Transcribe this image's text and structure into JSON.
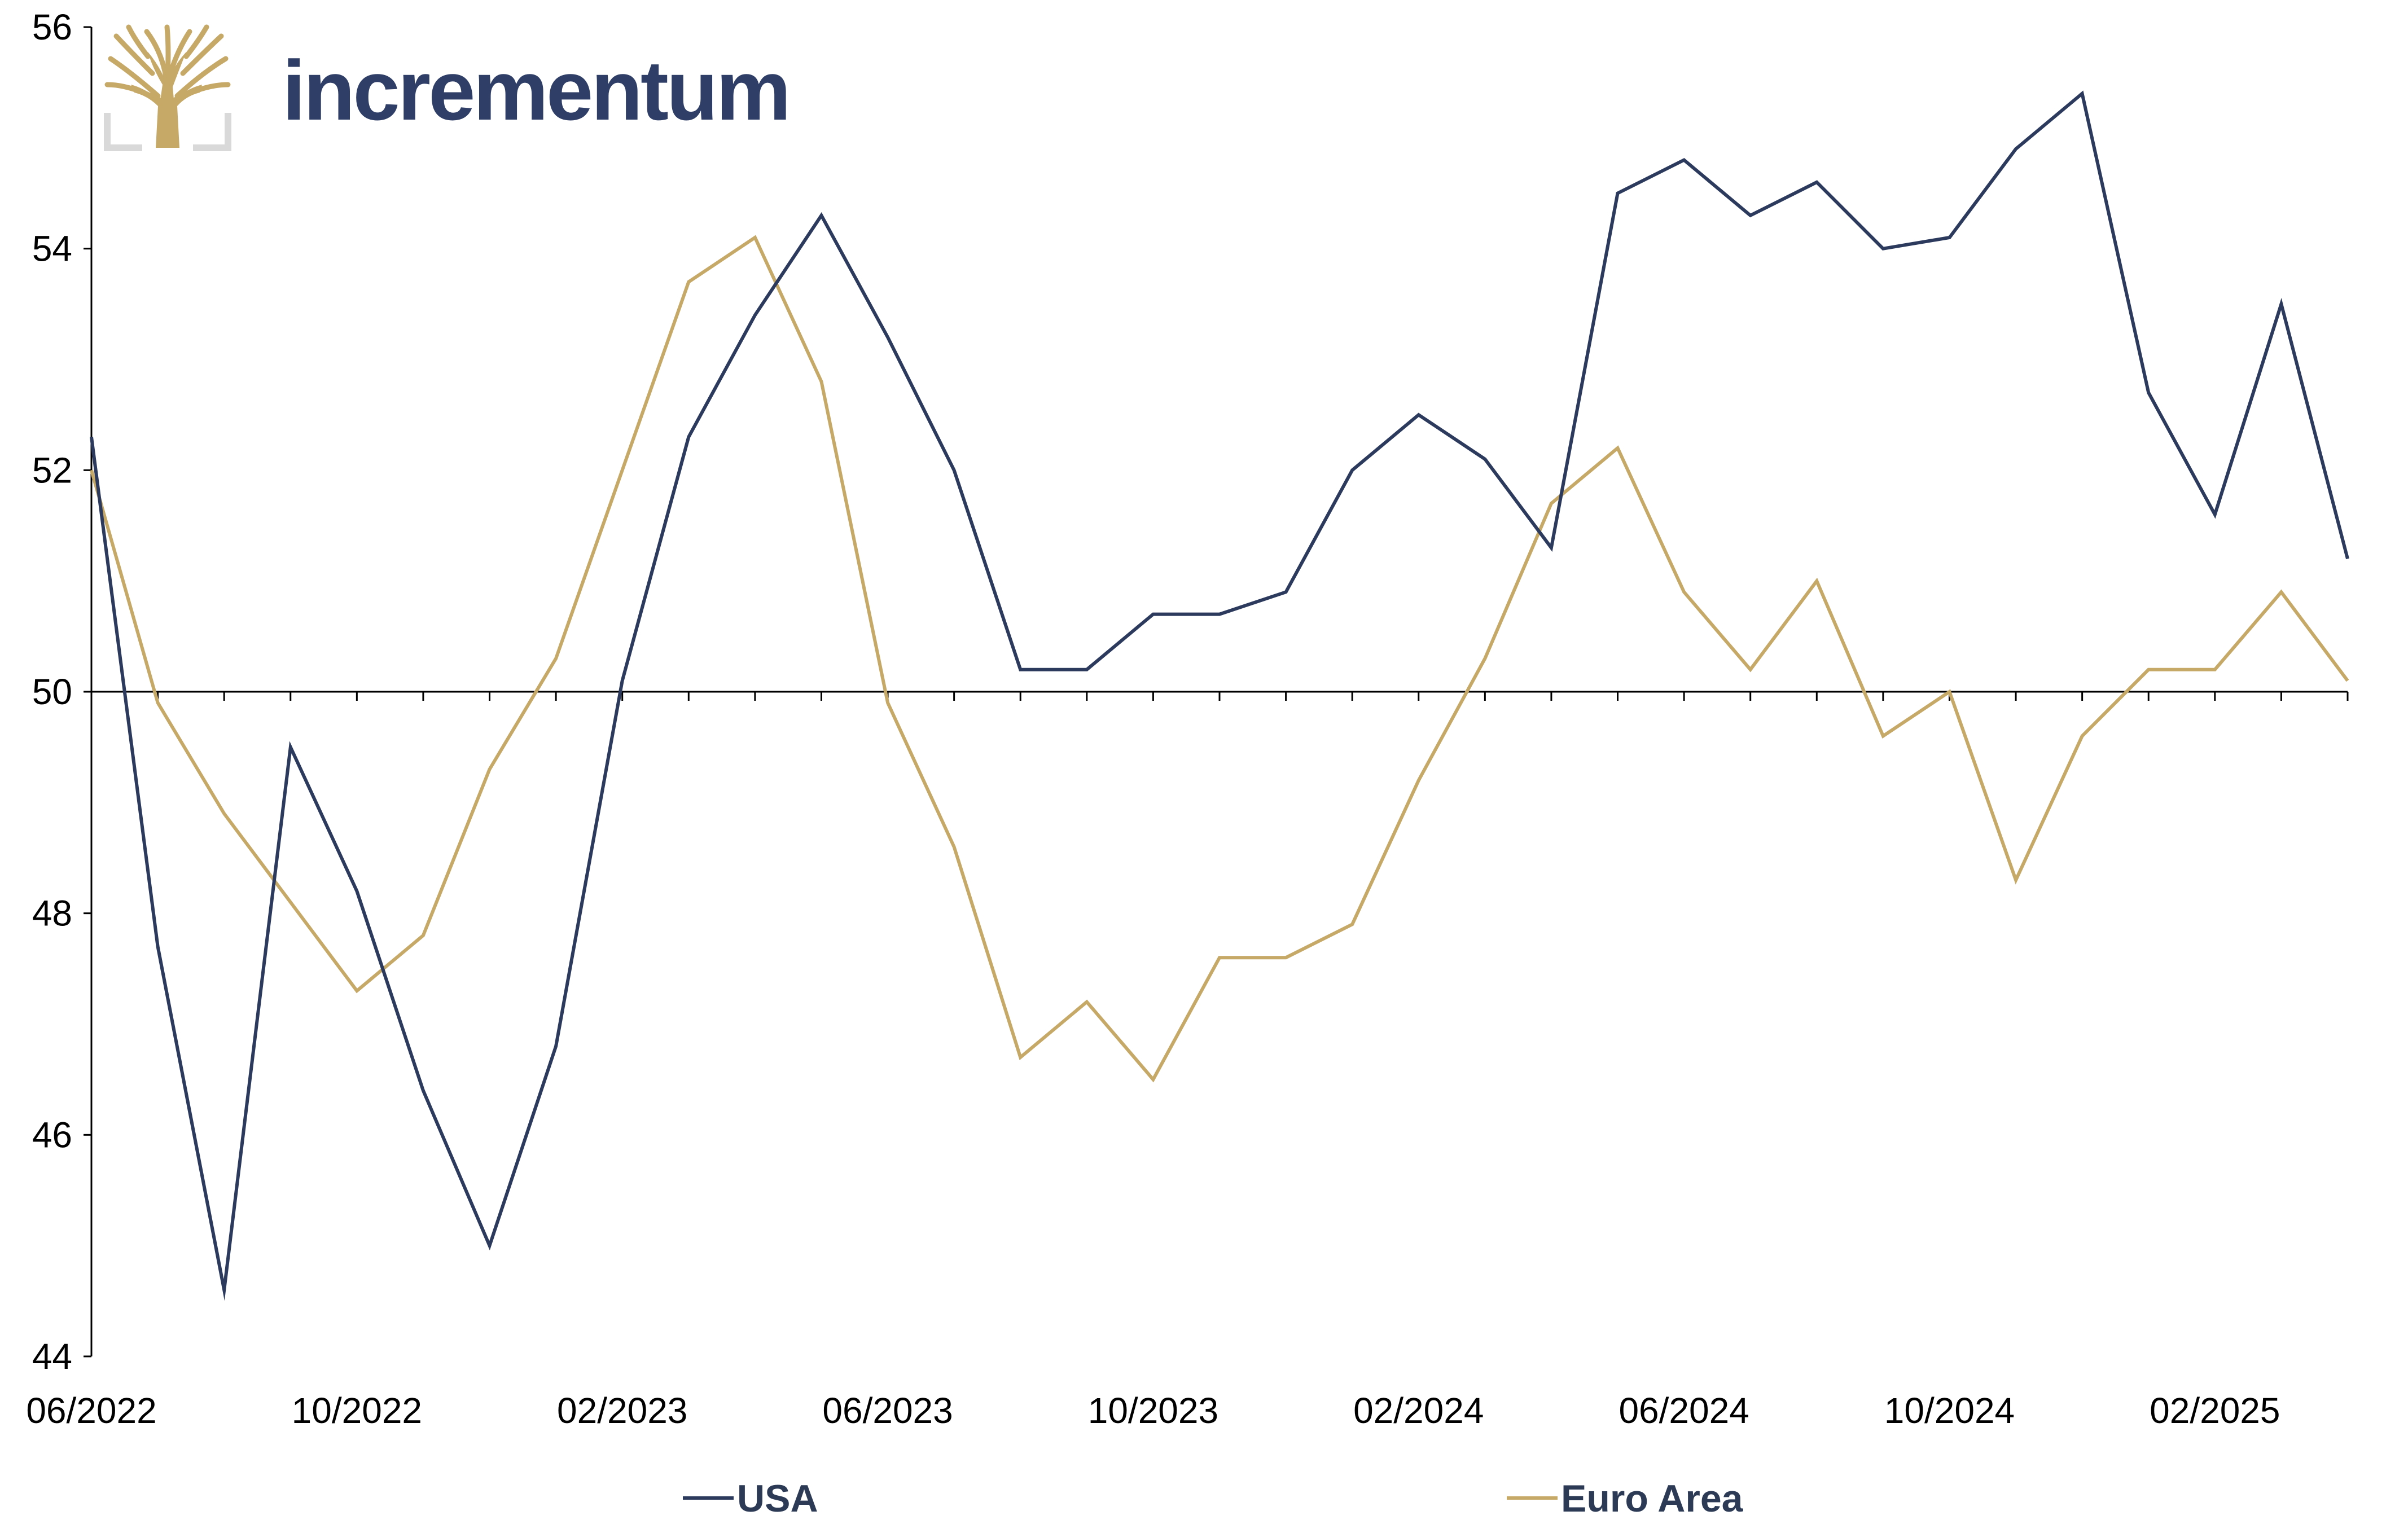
{
  "logo": {
    "brand_text": "incrementum",
    "brand_color": "#2f3e66",
    "emblem_color": "#c6a867",
    "frame_color": "#d9d9d9"
  },
  "chart_data": {
    "type": "line",
    "title": "",
    "xlabel": "",
    "ylabel": "",
    "ylim": [
      44,
      56
    ],
    "yticks": [
      44,
      46,
      48,
      50,
      52,
      54,
      56
    ],
    "reference_line": 50,
    "grid": false,
    "legend_position": "bottom",
    "x": [
      "06/2022",
      "07/2022",
      "08/2022",
      "09/2022",
      "10/2022",
      "11/2022",
      "12/2022",
      "01/2023",
      "02/2023",
      "03/2023",
      "04/2023",
      "05/2023",
      "06/2023",
      "07/2023",
      "08/2023",
      "09/2023",
      "10/2023",
      "11/2023",
      "12/2023",
      "01/2024",
      "02/2024",
      "03/2024",
      "04/2024",
      "05/2024",
      "06/2024",
      "07/2024",
      "08/2024",
      "09/2024",
      "10/2024",
      "11/2024",
      "12/2024",
      "01/2025",
      "02/2025",
      "03/2025",
      "04/2025"
    ],
    "xtick_labels": [
      "06/2022",
      "10/2022",
      "02/2023",
      "06/2023",
      "10/2023",
      "02/2024",
      "06/2024",
      "10/2024",
      "02/2025"
    ],
    "series": [
      {
        "name": "USA",
        "color": "#2c3a5e",
        "values": [
          52.3,
          47.7,
          44.6,
          49.5,
          48.2,
          46.4,
          45.0,
          46.8,
          50.1,
          52.3,
          53.4,
          54.3,
          53.2,
          52.0,
          50.2,
          50.2,
          50.7,
          50.7,
          50.9,
          52.0,
          52.5,
          52.1,
          51.3,
          54.5,
          54.8,
          54.3,
          54.6,
          54.0,
          54.1,
          54.9,
          55.4,
          52.7,
          51.6,
          53.5,
          51.2
        ]
      },
      {
        "name": "Euro Area",
        "color": "#c6a867",
        "values": [
          52.0,
          49.9,
          48.9,
          48.1,
          47.3,
          47.8,
          49.3,
          50.3,
          52.0,
          53.7,
          54.1,
          52.8,
          49.9,
          48.6,
          46.7,
          47.2,
          46.5,
          47.6,
          47.6,
          47.9,
          49.2,
          50.3,
          51.7,
          52.2,
          50.9,
          50.2,
          51.0,
          49.6,
          50.0,
          48.3,
          49.6,
          50.2,
          50.2,
          50.9,
          50.1
        ]
      }
    ]
  }
}
